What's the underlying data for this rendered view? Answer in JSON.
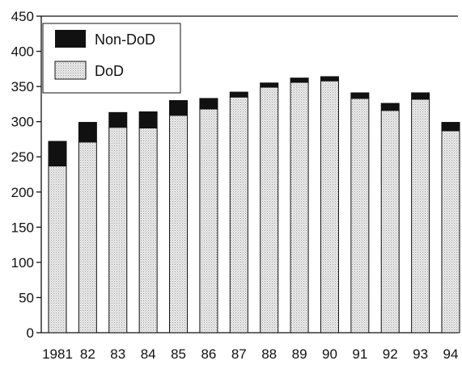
{
  "chart_data": {
    "type": "bar",
    "stacked": true,
    "categories": [
      "1981",
      "82",
      "83",
      "84",
      "85",
      "86",
      "87",
      "88",
      "89",
      "90",
      "91",
      "92",
      "93",
      "94"
    ],
    "series": [
      {
        "name": "DoD",
        "values": [
          237,
          271,
          292,
          291,
          309,
          318,
          335,
          349,
          356,
          358,
          333,
          316,
          332,
          287
        ]
      },
      {
        "name": "Non-DoD",
        "values": [
          35,
          28,
          21,
          23,
          21,
          15,
          7,
          6,
          6,
          6,
          8,
          10,
          9,
          12
        ]
      }
    ],
    "ylim": [
      0,
      450
    ],
    "yticks": [
      "0",
      "50",
      "100",
      "150",
      "200",
      "250",
      "300",
      "350",
      "400",
      "450"
    ],
    "legend": {
      "position": "top-left"
    },
    "colors": {
      "DoD": "#e4e4e4",
      "Non-DoD": "#111111",
      "bar_outline": "#111111"
    },
    "grid": false
  }
}
